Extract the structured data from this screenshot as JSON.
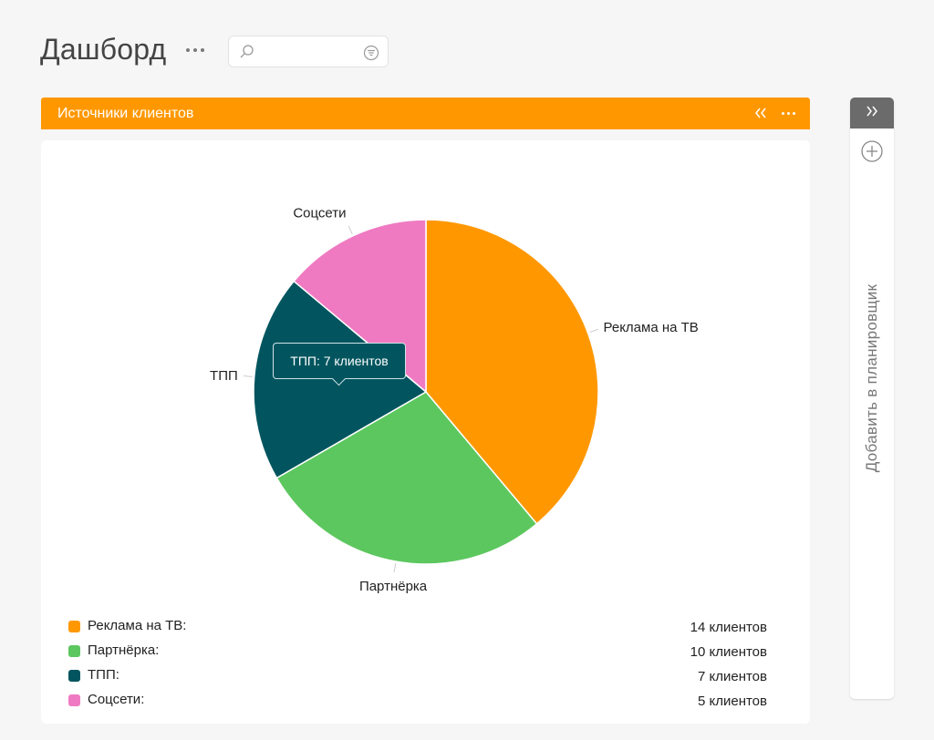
{
  "page": {
    "title": "Дашборд"
  },
  "search": {
    "placeholder": "",
    "value": ""
  },
  "widget": {
    "title": "Источники клиентов"
  },
  "side_panel": {
    "label": "Добавить в планировщик"
  },
  "tooltip": {
    "text": "ТПП: 7 клиентов"
  },
  "chart_data": {
    "type": "pie",
    "categories": [
      "Реклама на ТВ",
      "Партнёрка",
      "ТПП",
      "Соцсети"
    ],
    "values": [
      14,
      10,
      7,
      5
    ],
    "colors": [
      "#ff9800",
      "#5cc75e",
      "#02555f",
      "#ef7ac2"
    ],
    "start_direction": "top, clockwise",
    "legend": {
      "placement": "bottom",
      "items": [
        {
          "label": "Реклама на ТВ:",
          "value_text": "14 клиентов",
          "color": "#ff9800"
        },
        {
          "label": "Партнёрка:",
          "value_text": "10 клиентов",
          "color": "#5cc75e"
        },
        {
          "label": "ТПП:",
          "value_text": "7 клиентов",
          "color": "#02555f"
        },
        {
          "label": "Соцсети:",
          "value_text": "5 клиентов",
          "color": "#ef7ac2"
        }
      ]
    }
  }
}
